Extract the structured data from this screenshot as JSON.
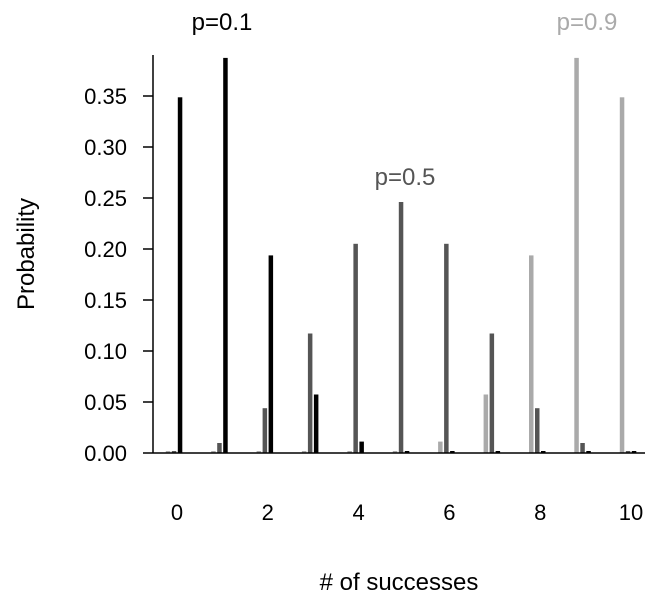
{
  "chart_data": {
    "type": "bar",
    "xlabel": "# of successes",
    "ylabel": "Probability",
    "x": [
      0,
      1,
      2,
      3,
      4,
      5,
      6,
      7,
      8,
      9,
      10
    ],
    "x_tick_labels": [
      "0",
      "2",
      "4",
      "6",
      "8",
      "10"
    ],
    "y_tick_labels": [
      "0.00",
      "0.05",
      "0.10",
      "0.15",
      "0.20",
      "0.25",
      "0.30",
      "0.35"
    ],
    "ylim": [
      0,
      0.39
    ],
    "series": [
      {
        "name": "p=0.9",
        "color": "#aaaaaa",
        "values": [
          0.0,
          0.0,
          0.0,
          0.0,
          0.0001,
          0.0015,
          0.0112,
          0.0574,
          0.1937,
          0.3874,
          0.3487
        ]
      },
      {
        "name": "p=0.5",
        "color": "#555555",
        "values": [
          0.001,
          0.0098,
          0.0439,
          0.1172,
          0.2051,
          0.2461,
          0.2051,
          0.1172,
          0.0439,
          0.0098,
          0.001
        ]
      },
      {
        "name": "p=0.1",
        "color": "#000000",
        "values": [
          0.3487,
          0.3874,
          0.1937,
          0.0574,
          0.0112,
          0.0015,
          0.0001,
          0.0,
          0.0,
          0.0,
          0.0
        ]
      }
    ],
    "annotations": [
      {
        "text": "p=0.1",
        "color": "#000000"
      },
      {
        "text": "p=0.5",
        "color": "#555555"
      },
      {
        "text": "p=0.9",
        "color": "#aaaaaa"
      }
    ],
    "grid": false,
    "legend": "none"
  }
}
